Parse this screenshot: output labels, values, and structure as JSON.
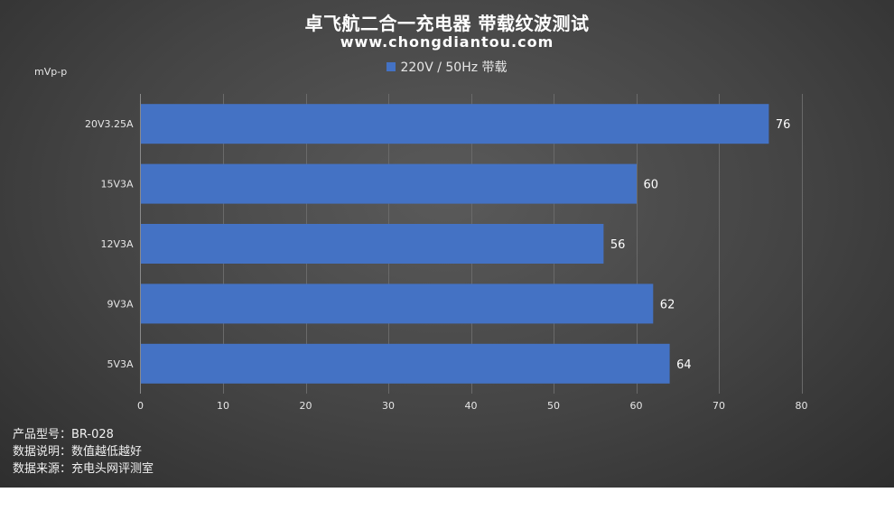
{
  "title": "卓飞航二合一充电器 带载纹波测试",
  "subtitle": "www.chongdiantou.com",
  "unit_label": "mVp-p",
  "footnotes": [
    "产品型号：BR-028",
    "数据说明：数值越低越好",
    "数据来源：充电头网评测室"
  ],
  "colors": {
    "bar": "#4472c4",
    "text": "#e6e6e6",
    "grid": "#6a6a6a"
  },
  "chart_data": {
    "type": "bar",
    "orientation": "horizontal",
    "title": "卓飞航二合一充电器 带载纹波测试",
    "categories": [
      "20V3.25A",
      "15V3A",
      "12V3A",
      "9V3A",
      "5V3A"
    ],
    "series": [
      {
        "name": "220V / 50Hz 带载",
        "values": [
          76,
          60,
          56,
          62,
          64
        ]
      }
    ],
    "xlim": [
      0,
      80
    ],
    "x_ticks": [
      0,
      10,
      20,
      30,
      40,
      50,
      60,
      70,
      80
    ],
    "grid": true,
    "legend_position": "top-center",
    "data_labels": true
  }
}
